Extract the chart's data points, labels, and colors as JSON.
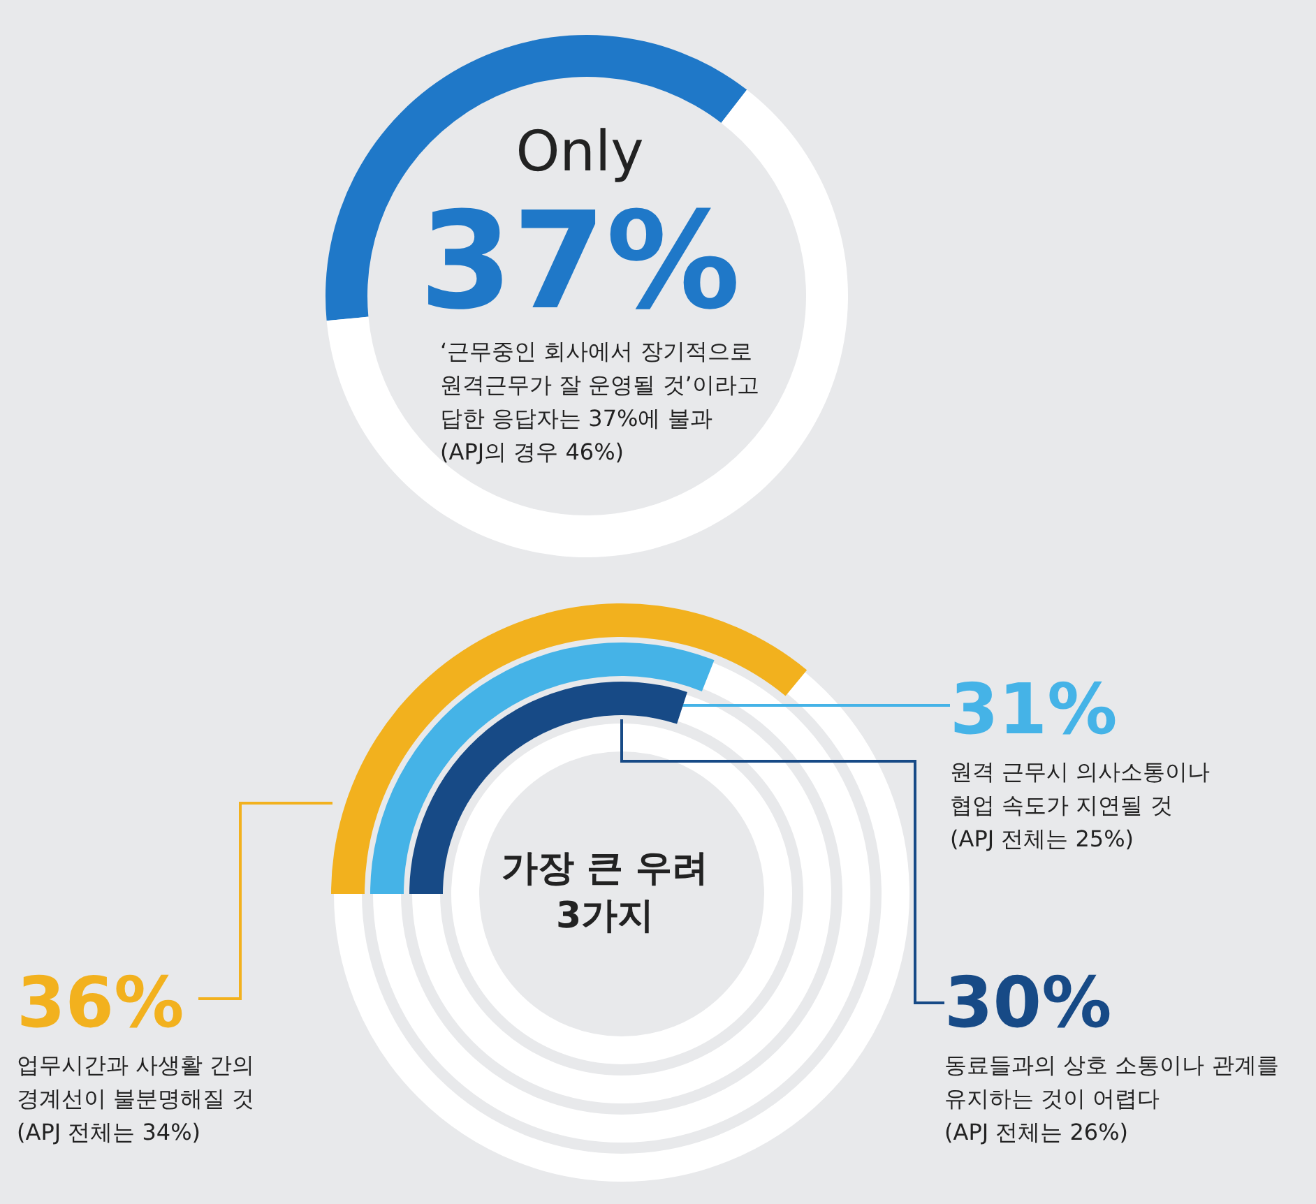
{
  "chart_data": [
    {
      "type": "donut",
      "title": "Only",
      "categories": [
        null,
        null
      ],
      "values": [
        37,
        63
      ],
      "colors": [
        "#1f78c8",
        "#ffffff"
      ],
      "value_labels": [
        "37%",
        null
      ],
      "annotations": [
        "‘근무중인 회사에서 장기적으로\n원격근무가 잘 운영될 것’이라고\n답한 응답자는 37%에 불과\n(APJ의 경우 46%)"
      ]
    },
    {
      "type": "other",
      "title": "가장 큰 우려\n3가지",
      "categories": [
        "업무시간과 사생활 간의\n경계선이 불분명해질 것\n(APJ 전체는 34%)",
        "원격 근무시 의사소통이나\n협업 속도가 지연될 것\n(APJ 전체는 25%)",
        "동료들과의 상호 소통이나 관계를\n유지하는 것이 어렵다\n(APJ 전체는 26%)"
      ],
      "values": [
        36,
        31,
        30
      ],
      "colors": [
        "#f2b11e",
        "#45b3e7",
        "#174a86"
      ],
      "value_labels": [
        "36%",
        "31%",
        "30%"
      ]
    }
  ]
}
